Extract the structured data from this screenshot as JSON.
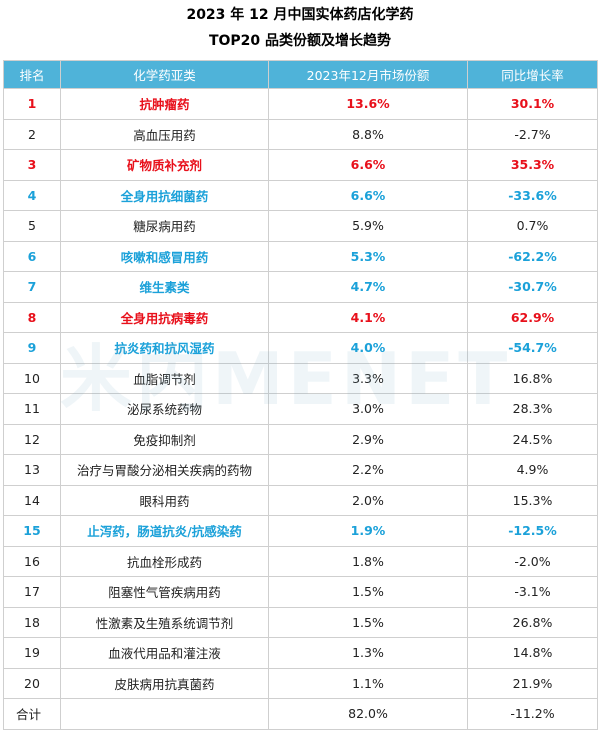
{
  "title": [
    "2023 年 12 月中国实体药店化学药",
    "TOP20 品类份额及增长趋势"
  ],
  "watermark": "米内MENET",
  "header_color": "#4fb3d9",
  "table": {
    "header": [
      "排名",
      "化学药亚类",
      "2023年12月市场份额",
      "同比增长率"
    ],
    "rows": [
      {
        "cells": [
          "1",
          "抗肿瘤药",
          "13.6%",
          "30.1%"
        ],
        "color": "#e8101b"
      },
      {
        "cells": [
          "2",
          "高血压用药",
          "8.8%",
          "-2.7%"
        ]
      },
      {
        "cells": [
          "3",
          "矿物质补充剂",
          "6.6%",
          "35.3%"
        ],
        "color": "#e8101b"
      },
      {
        "cells": [
          "4",
          "全身用抗细菌药",
          "6.6%",
          "-33.6%"
        ],
        "color": "#1ba1d9"
      },
      {
        "cells": [
          "5",
          "糖尿病用药",
          "5.9%",
          "0.7%"
        ]
      },
      {
        "cells": [
          "6",
          "咳嗽和感冒用药",
          "5.3%",
          "-62.2%"
        ],
        "color": "#1ba1d9"
      },
      {
        "cells": [
          "7",
          "维生素类",
          "4.7%",
          "-30.7%"
        ],
        "color": "#1ba1d9"
      },
      {
        "cells": [
          "8",
          "全身用抗病毒药",
          "4.1%",
          "62.9%"
        ],
        "color": "#e8101b"
      },
      {
        "cells": [
          "9",
          "抗炎药和抗风湿药",
          "4.0%",
          "-54.7%"
        ],
        "color": "#1ba1d9"
      },
      {
        "cells": [
          "10",
          "血脂调节剂",
          "3.3%",
          "16.8%"
        ]
      },
      {
        "cells": [
          "11",
          "泌尿系统药物",
          "3.0%",
          "28.3%"
        ]
      },
      {
        "cells": [
          "12",
          "免疫抑制剂",
          "2.9%",
          "24.5%"
        ]
      },
      {
        "cells": [
          "13",
          "治疗与胃酸分泌相关疾病的药物",
          "2.2%",
          "4.9%"
        ]
      },
      {
        "cells": [
          "14",
          "眼科用药",
          "2.0%",
          "15.3%"
        ]
      },
      {
        "cells": [
          "15",
          "止泻药，肠道抗炎/抗感染药",
          "1.9%",
          "-12.5%"
        ],
        "color": "#1ba1d9"
      },
      {
        "cells": [
          "16",
          "抗血栓形成药",
          "1.8%",
          "-2.0%"
        ]
      },
      {
        "cells": [
          "17",
          "阻塞性气管疾病用药",
          "1.5%",
          "-3.1%"
        ]
      },
      {
        "cells": [
          "18",
          "性激素及生殖系统调节剂",
          "1.5%",
          "26.8%"
        ]
      },
      {
        "cells": [
          "19",
          "血液代用品和灌注液",
          "1.3%",
          "14.8%"
        ]
      },
      {
        "cells": [
          "20",
          "皮肤病用抗真菌药",
          "1.1%",
          "21.9%"
        ]
      }
    ],
    "total": {
      "label": "合计",
      "share": "82.0%",
      "growth": "-11.2%"
    }
  }
}
